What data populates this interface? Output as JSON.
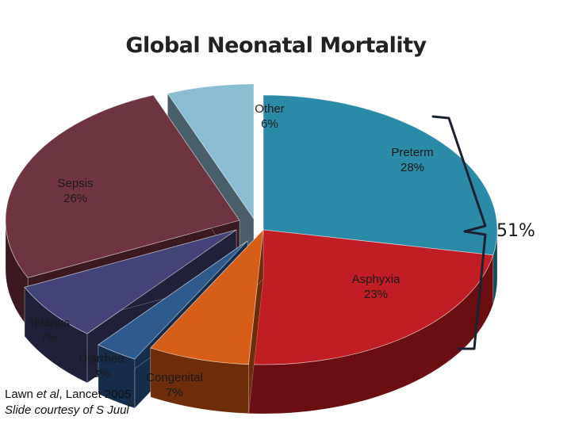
{
  "chart_data": {
    "type": "pie",
    "title": "Global Neonatal Mortality",
    "slices": [
      {
        "name": "Preterm",
        "label": "Preterm",
        "value_label": "28%",
        "value": 28,
        "top": "#2a8aa8",
        "side": "#14495a"
      },
      {
        "name": "Asphyxia",
        "label": "Asphyxia",
        "value_label": "23%",
        "value": 23,
        "top": "#c01d24",
        "side": "#6a0e12"
      },
      {
        "name": "Congenital",
        "label": "Congenital",
        "value_label": "7%",
        "value": 7,
        "top": "#d65e18",
        "side": "#6e2c08"
      },
      {
        "name": "Diarrhea",
        "label": "Diarrhea",
        "value_label": "3%",
        "value": 3,
        "top": "#2f5a8e",
        "side": "#162d4a"
      },
      {
        "name": "Tetanus",
        "label": "Tetanus",
        "value_label": "7%",
        "value": 7,
        "top": "#434477",
        "side": "#202139"
      },
      {
        "name": "Sepsis",
        "label": "Sepsis",
        "value_label": "26%",
        "value": 26,
        "top": "#6e3540",
        "side": "#3a1a20"
      },
      {
        "name": "Other",
        "label": "Other",
        "value_label": "6%",
        "value": 6,
        "top": "#8abdd1",
        "side": "#485e68"
      }
    ],
    "bracket": {
      "label": "51%",
      "covers": [
        "Preterm",
        "Asphyxia"
      ]
    }
  },
  "citation": {
    "line1_pre": "Lawn ",
    "line1_em": "et al",
    "line1_post": ", Lancet 2005",
    "line2": "Slide courtesy of S Juul"
  }
}
